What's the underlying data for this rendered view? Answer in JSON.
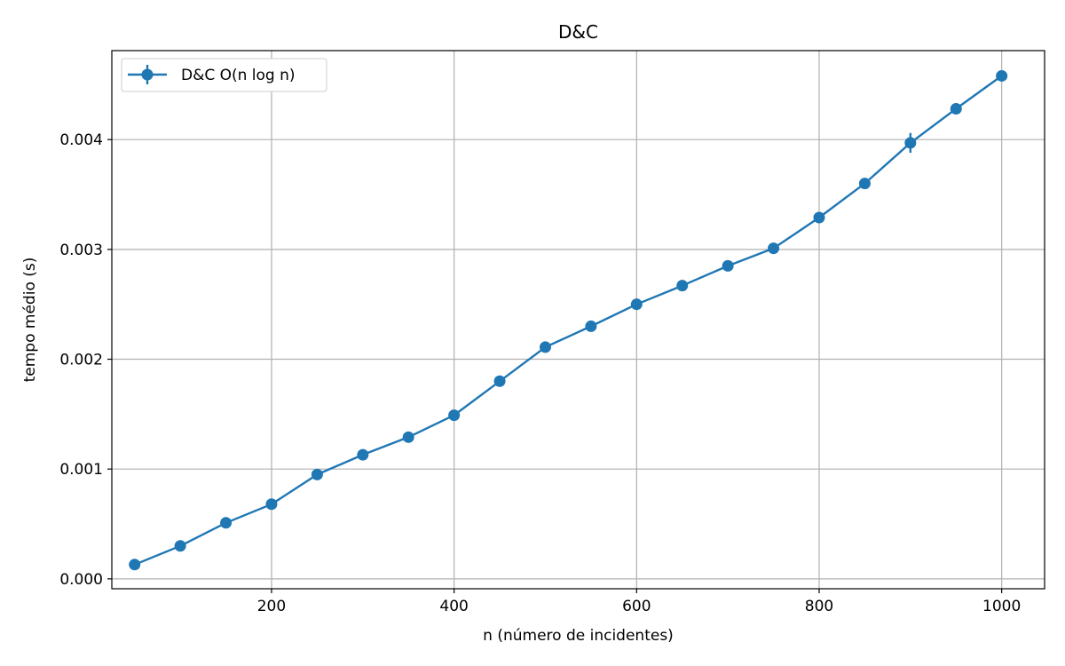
{
  "chart_data": {
    "type": "line",
    "title": "D&C",
    "xlabel": "n (número de incidentes)",
    "ylabel": "tempo médio (s)",
    "xlim": [
      25,
      1047
    ],
    "ylim": [
      -9e-05,
      0.00481
    ],
    "xticks": [
      200,
      400,
      600,
      800,
      1000
    ],
    "xtick_labels": [
      "200",
      "400",
      "600",
      "800",
      "1000"
    ],
    "yticks": [
      0.0,
      0.001,
      0.002,
      0.003,
      0.004
    ],
    "ytick_labels": [
      "0.000",
      "0.001",
      "0.002",
      "0.003",
      "0.004"
    ],
    "grid": true,
    "legend_position": "top-left",
    "series": [
      {
        "name": "D&C O(n log n)",
        "color": "#1f77b4",
        "x": [
          50,
          100,
          150,
          200,
          250,
          300,
          350,
          400,
          450,
          500,
          550,
          600,
          650,
          700,
          750,
          800,
          850,
          900,
          950,
          1000
        ],
        "y": [
          0.00013,
          0.0003,
          0.00051,
          0.00068,
          0.00095,
          0.00113,
          0.00129,
          0.00149,
          0.0018,
          0.00211,
          0.0023,
          0.0025,
          0.00267,
          0.00285,
          0.00301,
          0.00329,
          0.0036,
          0.00397,
          0.00428,
          0.00458
        ],
        "yerr": [
          0,
          0,
          0,
          0,
          0,
          0,
          0,
          0,
          0,
          0,
          0,
          0,
          0,
          0,
          0,
          0,
          0,
          9e-05,
          0,
          0
        ]
      }
    ]
  }
}
